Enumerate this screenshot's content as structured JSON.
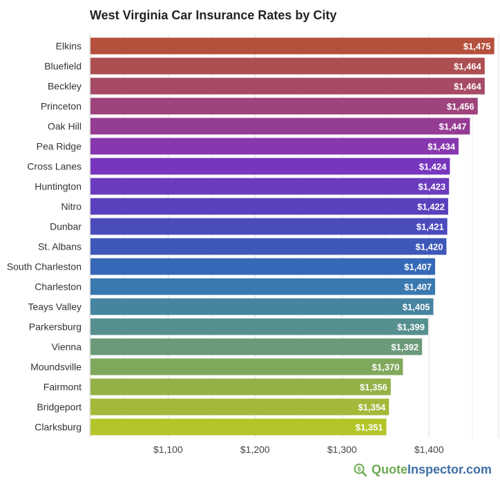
{
  "chart_data": {
    "type": "bar",
    "orientation": "horizontal",
    "title": "West Virginia Car Insurance Rates by City",
    "categories": [
      "Elkins",
      "Bluefield",
      "Beckley",
      "Princeton",
      "Oak Hill",
      "Pea Ridge",
      "Cross Lanes",
      "Huntington",
      "Nitro",
      "Dunbar",
      "St. Albans",
      "South Charleston",
      "Charleston",
      "Teays Valley",
      "Parkersburg",
      "Vienna",
      "Moundsville",
      "Fairmont",
      "Bridgeport",
      "Clarksburg"
    ],
    "values": [
      1475,
      1464,
      1464,
      1456,
      1447,
      1434,
      1424,
      1423,
      1422,
      1421,
      1420,
      1407,
      1407,
      1405,
      1399,
      1392,
      1370,
      1356,
      1354,
      1351
    ],
    "value_labels": [
      "$1,475",
      "$1,464",
      "$1,464",
      "$1,456",
      "$1,447",
      "$1,434",
      "$1,424",
      "$1,423",
      "$1,422",
      "$1,421",
      "$1,420",
      "$1,407",
      "$1,407",
      "$1,405",
      "$1,399",
      "$1,392",
      "$1,370",
      "$1,356",
      "$1,354",
      "$1,351"
    ],
    "colors": [
      "#b5503d",
      "#ad4f52",
      "#a64a66",
      "#9e437b",
      "#953c93",
      "#8738ae",
      "#7736bd",
      "#6a3bbd",
      "#5a40bc",
      "#4b4cbc",
      "#3d58b8",
      "#3569b7",
      "#3a78b0",
      "#4684a0",
      "#55908f",
      "#6a9a79",
      "#7fa85c",
      "#93b146",
      "#a4b93a",
      "#b4c52a"
    ],
    "xlim": [
      1010,
      1480
    ],
    "xticks": [
      1100,
      1200,
      1300,
      1400
    ],
    "xtick_labels": [
      "$1,100",
      "$1,200",
      "$1,300",
      "$1,400"
    ],
    "grid": true,
    "xlabel": "",
    "ylabel": ""
  },
  "brand": {
    "icon": "dollar-magnifier-icon",
    "quote": "Quote",
    "inspector": "Inspector",
    "domain": ".com"
  }
}
